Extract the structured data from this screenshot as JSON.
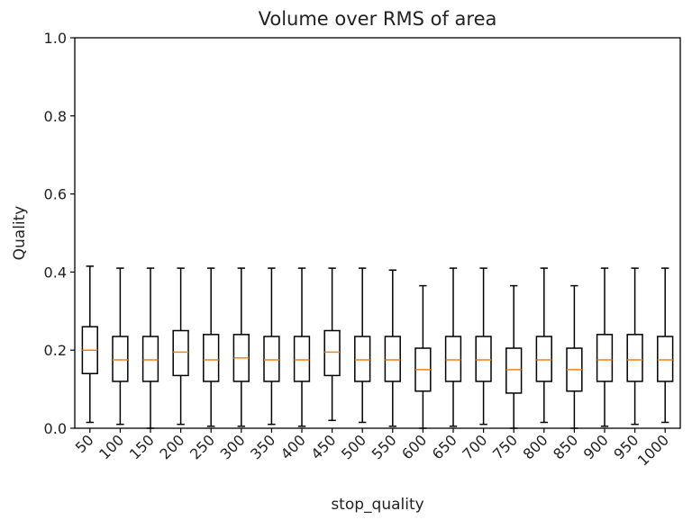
{
  "chart_data": {
    "type": "boxplot",
    "title": "Volume over RMS of area",
    "xlabel": "stop_quality",
    "ylabel": "Quality",
    "ylim": [
      0.0,
      1.0
    ],
    "yticks": [
      "0.0",
      "0.2",
      "0.4",
      "0.6",
      "0.8",
      "1.0"
    ],
    "grid": false,
    "colors": {
      "box": "#000000",
      "median": "#ff7f0e"
    },
    "categories": [
      "50",
      "100",
      "150",
      "200",
      "250",
      "300",
      "350",
      "400",
      "450",
      "500",
      "550",
      "600",
      "650",
      "700",
      "750",
      "800",
      "850",
      "900",
      "950",
      "1000"
    ],
    "boxes": [
      {
        "whislo": 0.015,
        "q1": 0.14,
        "med": 0.2,
        "q3": 0.26,
        "whishi": 0.415
      },
      {
        "whislo": 0.01,
        "q1": 0.12,
        "med": 0.175,
        "q3": 0.235,
        "whishi": 0.41
      },
      {
        "whislo": 0.0,
        "q1": 0.12,
        "med": 0.175,
        "q3": 0.235,
        "whishi": 0.41
      },
      {
        "whislo": 0.01,
        "q1": 0.135,
        "med": 0.195,
        "q3": 0.25,
        "whishi": 0.41
      },
      {
        "whislo": 0.005,
        "q1": 0.12,
        "med": 0.175,
        "q3": 0.24,
        "whishi": 0.41
      },
      {
        "whislo": 0.005,
        "q1": 0.12,
        "med": 0.18,
        "q3": 0.24,
        "whishi": 0.41
      },
      {
        "whislo": 0.01,
        "q1": 0.12,
        "med": 0.175,
        "q3": 0.235,
        "whishi": 0.41
      },
      {
        "whislo": 0.005,
        "q1": 0.12,
        "med": 0.175,
        "q3": 0.235,
        "whishi": 0.41
      },
      {
        "whislo": 0.02,
        "q1": 0.135,
        "med": 0.195,
        "q3": 0.25,
        "whishi": 0.41
      },
      {
        "whislo": 0.015,
        "q1": 0.12,
        "med": 0.175,
        "q3": 0.235,
        "whishi": 0.41
      },
      {
        "whislo": 0.005,
        "q1": 0.12,
        "med": 0.175,
        "q3": 0.235,
        "whishi": 0.405
      },
      {
        "whislo": 0.0,
        "q1": 0.095,
        "med": 0.15,
        "q3": 0.205,
        "whishi": 0.365
      },
      {
        "whislo": 0.005,
        "q1": 0.12,
        "med": 0.175,
        "q3": 0.235,
        "whishi": 0.41
      },
      {
        "whislo": 0.01,
        "q1": 0.12,
        "med": 0.175,
        "q3": 0.235,
        "whishi": 0.41
      },
      {
        "whislo": 0.0,
        "q1": 0.09,
        "med": 0.15,
        "q3": 0.205,
        "whishi": 0.365
      },
      {
        "whislo": 0.015,
        "q1": 0.12,
        "med": 0.175,
        "q3": 0.235,
        "whishi": 0.41
      },
      {
        "whislo": 0.0,
        "q1": 0.095,
        "med": 0.15,
        "q3": 0.205,
        "whishi": 0.365
      },
      {
        "whislo": 0.005,
        "q1": 0.12,
        "med": 0.175,
        "q3": 0.24,
        "whishi": 0.41
      },
      {
        "whislo": 0.01,
        "q1": 0.12,
        "med": 0.175,
        "q3": 0.24,
        "whishi": 0.41
      },
      {
        "whislo": 0.015,
        "q1": 0.12,
        "med": 0.175,
        "q3": 0.235,
        "whishi": 0.41
      }
    ]
  }
}
